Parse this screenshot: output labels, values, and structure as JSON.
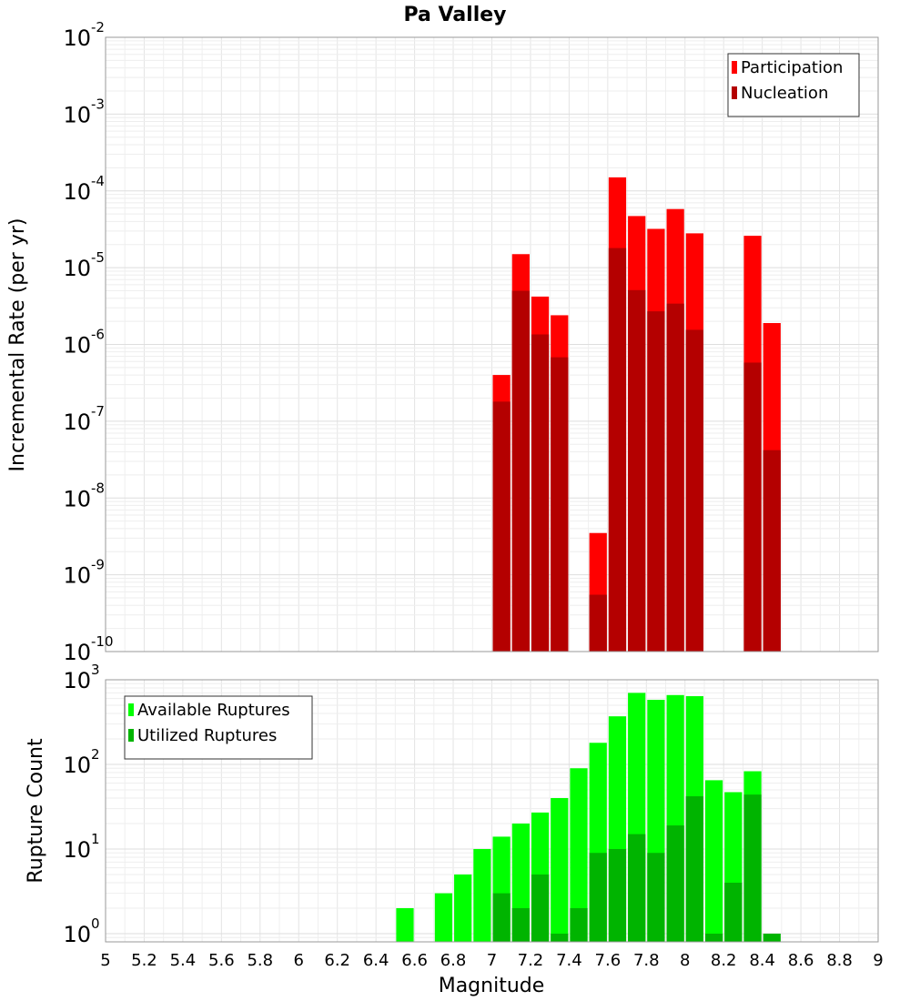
{
  "chart_data": [
    {
      "type": "bar",
      "title": "Pa Valley",
      "xlabel": "",
      "ylabel": "Incremental Rate (per yr)",
      "yscale": "log",
      "xlim": [
        5,
        9
      ],
      "ylim": [
        1e-10,
        0.01
      ],
      "grid": true,
      "legend_position": "top-right",
      "bar_width": 0.1,
      "y_tick_exponents": [
        -10,
        -9,
        -8,
        -7,
        -6,
        -5,
        -4,
        -3,
        -2
      ],
      "series": [
        {
          "name": "Participation",
          "color": "#ff0000",
          "x": [
            7.05,
            7.15,
            7.25,
            7.35,
            7.55,
            7.65,
            7.75,
            7.85,
            7.95,
            8.05,
            8.35,
            8.45
          ],
          "values": [
            4e-07,
            1.5e-05,
            4.2e-06,
            2.4e-06,
            3.5e-09,
            0.00015,
            4.7e-05,
            3.2e-05,
            5.8e-05,
            2.8e-05,
            2.6e-05,
            1.9e-06
          ]
        },
        {
          "name": "Nucleation",
          "color": "#b40000",
          "x": [
            7.05,
            7.15,
            7.25,
            7.35,
            7.55,
            7.65,
            7.75,
            7.85,
            7.95,
            8.05,
            8.35,
            8.45
          ],
          "values": [
            1.8e-07,
            5e-06,
            1.35e-06,
            6.8e-07,
            5.5e-10,
            1.8e-05,
            5.1e-06,
            2.7e-06,
            3.4e-06,
            1.55e-06,
            5.8e-07,
            4.2e-08
          ]
        }
      ]
    },
    {
      "type": "bar",
      "title": "",
      "xlabel": "Magnitude",
      "ylabel": "Rupture Count",
      "yscale": "log",
      "xlim": [
        5,
        9
      ],
      "ylim": [
        0.8,
        1000
      ],
      "grid": true,
      "legend_position": "top-left",
      "bar_width": 0.1,
      "x_ticks": [
        "5",
        "5.2",
        "5.4",
        "5.6",
        "5.8",
        "6",
        "6.2",
        "6.4",
        "6.6",
        "6.8",
        "7",
        "7.2",
        "7.4",
        "7.6",
        "7.8",
        "8",
        "8.2",
        "8.4",
        "8.6",
        "8.8",
        "9"
      ],
      "y_tick_exponents": [
        0,
        1,
        2,
        3
      ],
      "series": [
        {
          "name": "Available Ruptures",
          "color": "#00ff00",
          "x": [
            6.55,
            6.75,
            6.85,
            6.95,
            7.05,
            7.15,
            7.25,
            7.35,
            7.45,
            7.55,
            7.65,
            7.75,
            7.85,
            7.95,
            8.05,
            8.15,
            8.25,
            8.35
          ],
          "values": [
            2,
            3,
            5,
            10,
            14,
            20,
            27,
            40,
            90,
            180,
            370,
            700,
            580,
            660,
            640,
            65,
            47,
            83
          ]
        },
        {
          "name": "Utilized Ruptures",
          "color": "#00b400",
          "x": [
            7.05,
            7.15,
            7.25,
            7.35,
            7.45,
            7.55,
            7.65,
            7.75,
            7.85,
            7.95,
            8.05,
            8.15,
            8.25,
            8.35,
            8.45
          ],
          "values": [
            3,
            2,
            5,
            1,
            2,
            9,
            10,
            15,
            9,
            19,
            42,
            1,
            4,
            44,
            1
          ]
        }
      ]
    }
  ]
}
